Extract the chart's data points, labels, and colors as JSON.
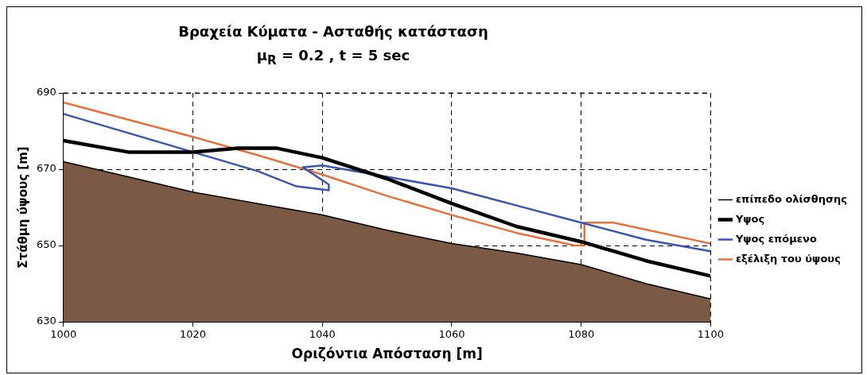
{
  "chart_data": {
    "type": "line",
    "title": "Βραχεία Κύματα  - Ασταθής κατάσταση",
    "subtitle": "μ$_{R}$ = 0.2 , t = 5 sec",
    "xlabel": "Οριζόντια Απόσταση [m]",
    "ylabel": "Στάθμη ύψους [m]",
    "xlim": [
      1000,
      1100
    ],
    "xticks": [
      1000,
      1020,
      1040,
      1060,
      1080,
      1100
    ],
    "ylim": [
      630,
      690
    ],
    "yticks": [
      630,
      650,
      670,
      690
    ],
    "grid": true,
    "legend": "right",
    "marker": "none",
    "line_style": "solid",
    "series": [
      {
        "type": "area",
        "name": "επίπεδο ολίσθησης",
        "color": "#7b5a45",
        "x": [
          1000,
          1010,
          1020,
          1030,
          1040,
          1050,
          1060,
          1070,
          1080,
          1090,
          1100
        ],
        "values": [
          672,
          668,
          664,
          661,
          658,
          654,
          650.5,
          648,
          645,
          640,
          636
        ]
      },
      {
        "type": "line",
        "name": "Υψος",
        "color": "#000000",
        "x": [
          1000,
          1010,
          1020,
          1027,
          1033,
          1040,
          1050,
          1060,
          1070,
          1080,
          1090,
          1100
        ],
        "values": [
          677.5,
          674.5,
          674.5,
          675.5,
          675.5,
          673,
          667.5,
          661,
          655,
          651,
          646,
          642
        ]
      },
      {
        "type": "line",
        "name": "Υψος επόμενο",
        "color": "#3a56b0",
        "x": [
          1000,
          1010,
          1020,
          1030,
          1036,
          1041,
          1041,
          1037,
          1040,
          1050,
          1060,
          1070,
          1080,
          1090,
          1100
        ],
        "values": [
          684.5,
          679.5,
          674.5,
          669.5,
          665.5,
          664.5,
          666,
          670.5,
          671,
          668,
          665,
          660.5,
          656,
          651.5,
          648.5
        ]
      },
      {
        "type": "line",
        "name": "εξέλιξη του ύψους",
        "color": "#e8703a",
        "x": [
          1000,
          1020,
          1030,
          1040,
          1050,
          1060,
          1070,
          1079,
          1080.5,
          1080.5,
          1085,
          1100
        ],
        "values": [
          687.5,
          678.5,
          673.7,
          668.6,
          663,
          658,
          653.3,
          650,
          650,
          656,
          656,
          650.5
        ]
      }
    ]
  }
}
